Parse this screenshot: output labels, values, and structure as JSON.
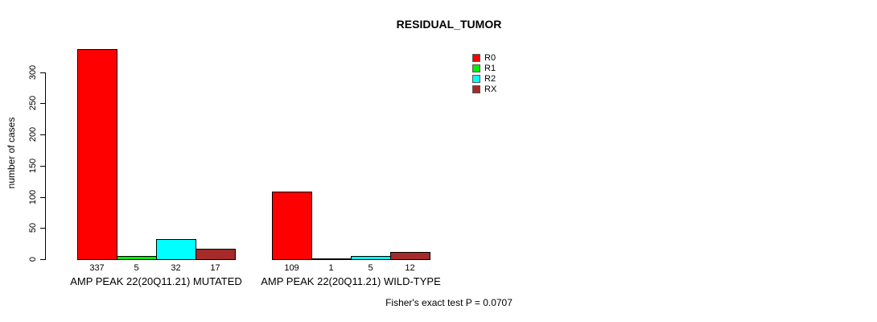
{
  "title": "RESIDUAL_TUMOR",
  "footer": "Fisher's exact test P = 0.0707",
  "chart_data": {
    "type": "bar",
    "title": "RESIDUAL_TUMOR",
    "xlabel": "",
    "ylabel": "number of cases",
    "yticks": [
      0,
      50,
      100,
      150,
      200,
      250,
      300
    ],
    "ylim": [
      0,
      340
    ],
    "grid": false,
    "legend_position": "top-right-inside",
    "series_names": [
      "R0",
      "R1",
      "R2",
      "RX"
    ],
    "series_colors": [
      "#ff0000",
      "#00ee00",
      "#00ffff",
      "#a52a2a"
    ],
    "groups": [
      {
        "label": "AMP PEAK 22(20Q11.21) MUTATED",
        "values": [
          337,
          5,
          32,
          17
        ]
      },
      {
        "label": "AMP PEAK 22(20Q11.21) WILD-TYPE",
        "values": [
          109,
          1,
          5,
          12
        ]
      }
    ],
    "annotation": "Fisher's exact test P = 0.0707"
  }
}
